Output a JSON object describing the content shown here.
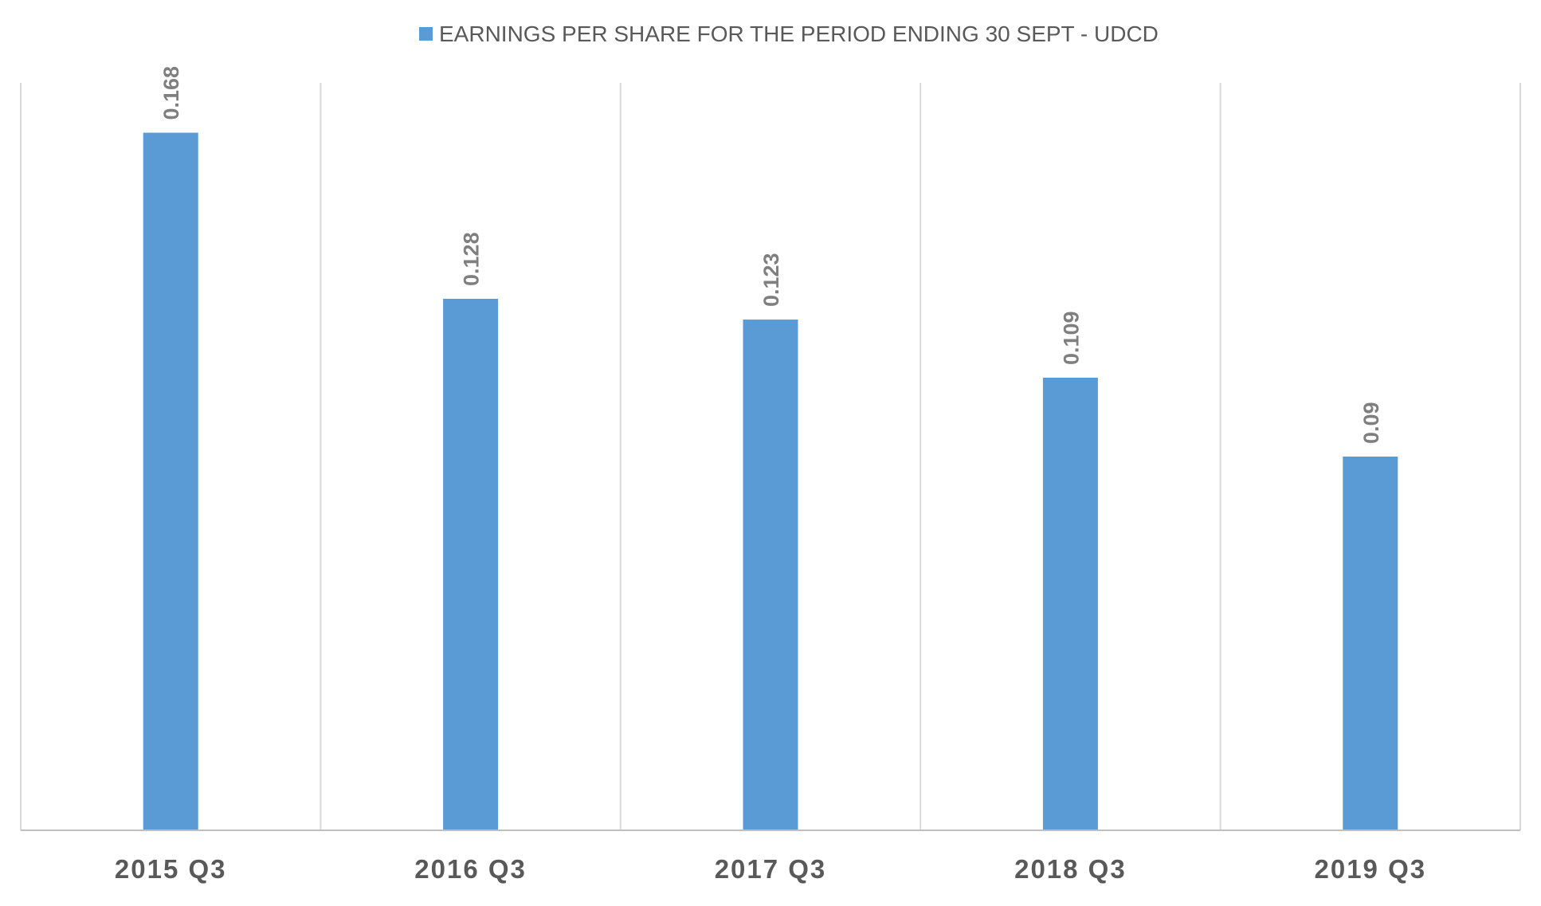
{
  "chart_data": {
    "type": "bar",
    "categories": [
      "2015 Q3",
      "2016 Q3",
      "2017 Q3",
      "2018 Q3",
      "2019 Q3"
    ],
    "series": [
      {
        "name": "EARNINGS PER SHARE FOR THE PERIOD ENDING 30 SEPT - UDCD",
        "values": [
          0.168,
          0.128,
          0.123,
          0.109,
          0.09
        ]
      }
    ],
    "data_labels": [
      "0.168",
      "0.128",
      "0.123",
      "0.109",
      "0.09"
    ],
    "ylim": [
      0,
      0.18
    ],
    "grid": "vertical",
    "legend_position": "top"
  },
  "colors": {
    "bar": "#5b9bd5",
    "grid": "#d9d9d9",
    "axis": "#bfbfbf",
    "label": "#7f7f7f",
    "category": "#595959",
    "legend_text": "#595959"
  }
}
